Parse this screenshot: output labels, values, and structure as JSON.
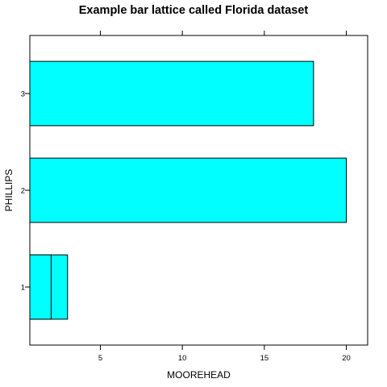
{
  "chart_data": {
    "type": "bar",
    "orientation": "horizontal",
    "title": "Example bar lattice called Florida dataset",
    "xlabel": "MOOREHEAD",
    "ylabel": "PHILLIPS",
    "categories": [
      "1",
      "2",
      "3"
    ],
    "bars": [
      {
        "category": "1",
        "value": 3
      },
      {
        "category": "1",
        "value": 2
      },
      {
        "category": "2",
        "value": 20
      },
      {
        "category": "3",
        "value": 18
      }
    ],
    "xlim": [
      0.7,
      21.3
    ],
    "xticks": [
      5,
      10,
      15,
      20
    ],
    "xtick_labels": [
      "5",
      "10",
      "15",
      "20"
    ],
    "grid": false,
    "bar_color": "#00ffff",
    "bar_border_color": "#000000"
  }
}
